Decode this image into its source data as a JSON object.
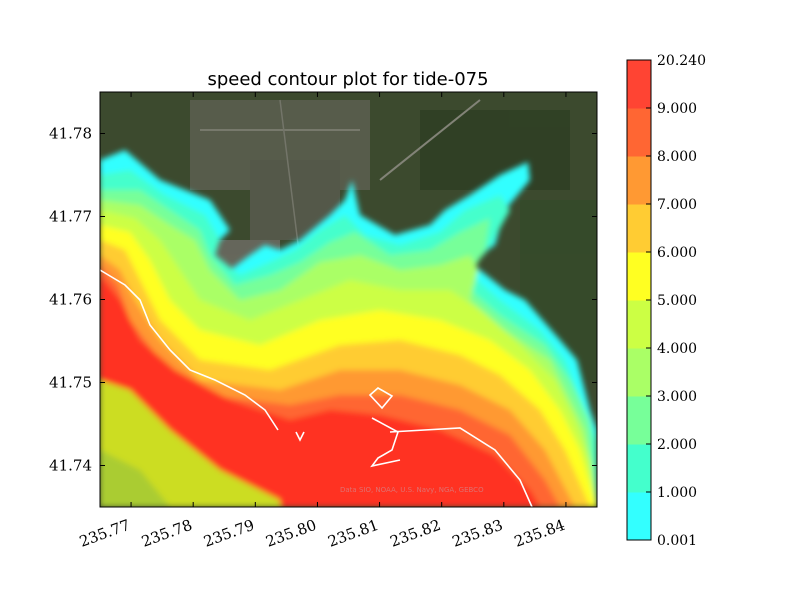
{
  "chart_data": {
    "type": "heatmap",
    "title": "speed contour plot for tide-075",
    "xlabel": "",
    "ylabel": "",
    "xlim": [
      235.765,
      235.845
    ],
    "ylim": [
      41.735,
      41.785
    ],
    "x_ticks": [
      "235.77",
      "235.78",
      "235.79",
      "235.80",
      "235.81",
      "235.82",
      "235.83",
      "235.84"
    ],
    "x_tick_values": [
      235.77,
      235.78,
      235.79,
      235.8,
      235.81,
      235.82,
      235.83,
      235.84
    ],
    "y_ticks": [
      "41.74",
      "41.75",
      "41.76",
      "41.77",
      "41.78"
    ],
    "y_tick_values": [
      41.74,
      41.75,
      41.76,
      41.77,
      41.78
    ],
    "colorbar": {
      "levels": [
        "0.001",
        "1.000",
        "2.000",
        "3.000",
        "4.000",
        "5.000",
        "6.000",
        "7.000",
        "8.000",
        "9.000",
        "20.240"
      ],
      "colors": [
        "#33ffff",
        "#44ffcc",
        "#77ff99",
        "#aaff66",
        "#ccff44",
        "#ffff22",
        "#ffcc33",
        "#ff9933",
        "#ff6633",
        "#ff4433"
      ]
    },
    "basemap_attribution": "Data SIO, NOAA, U.S. Navy, NGA, GEBCO",
    "grid": false
  }
}
